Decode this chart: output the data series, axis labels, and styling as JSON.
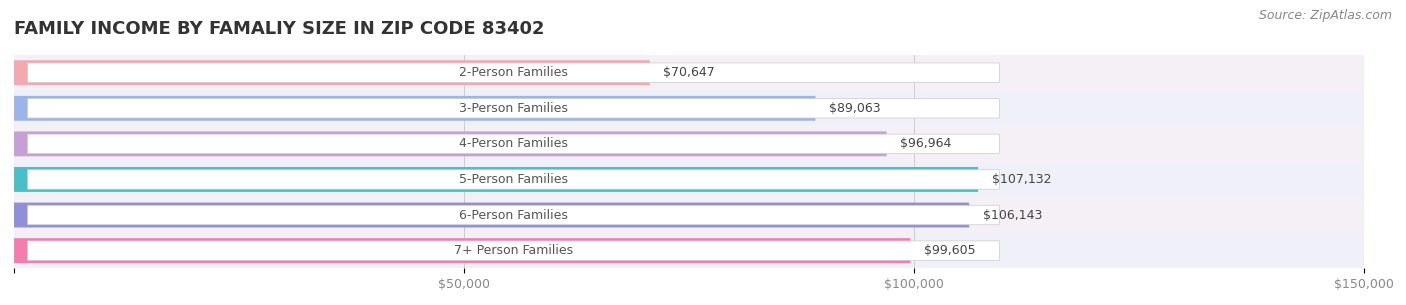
{
  "title": "FAMILY INCOME BY FAMALIY SIZE IN ZIP CODE 83402",
  "source": "Source: ZipAtlas.com",
  "categories": [
    "2-Person Families",
    "3-Person Families",
    "4-Person Families",
    "5-Person Families",
    "6-Person Families",
    "7+ Person Families"
  ],
  "values": [
    70647,
    89063,
    96964,
    107132,
    106143,
    99605
  ],
  "labels": [
    "$70,647",
    "$89,063",
    "$96,964",
    "$107,132",
    "$106,143",
    "$99,605"
  ],
  "bar_colors": [
    "#F4A9B0",
    "#9BB5E8",
    "#C4A0D4",
    "#4BBFC8",
    "#9090D8",
    "#F47DB0"
  ],
  "bar_row_colors": [
    "#F5F0F5",
    "#F0F0F8",
    "#F5F0F5",
    "#F0F0F8",
    "#F5F0F5",
    "#F0F0F8"
  ],
  "xmin": 0,
  "xmax": 150000,
  "xticks": [
    0,
    50000,
    100000,
    150000
  ],
  "xtick_labels": [
    "",
    "$50,000",
    "$100,000",
    "$150,000"
  ],
  "background_color": "#FFFFFF",
  "title_fontsize": 13,
  "label_fontsize": 9,
  "tick_fontsize": 9,
  "source_fontsize": 9
}
